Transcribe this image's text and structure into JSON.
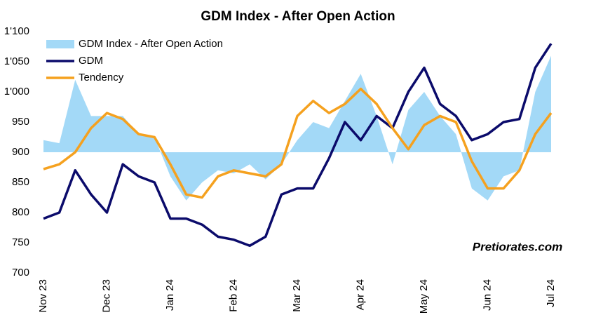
{
  "chart_data": {
    "type": "line",
    "title": "GDM Index - After Open Action",
    "annotation": "Pretiorates.com",
    "categories": [
      "Nov 23",
      null,
      null,
      null,
      "Dec 23",
      null,
      null,
      null,
      "Jan 24",
      null,
      null,
      null,
      "Feb 24",
      null,
      null,
      null,
      "Mar 24",
      null,
      null,
      null,
      "Apr 24",
      null,
      null,
      null,
      "May 24",
      null,
      null,
      null,
      "Jun 24",
      null,
      null,
      null,
      "Jul 24"
    ],
    "area_baseline": 900,
    "series": [
      {
        "name": "GDM Index - After Open Action",
        "kind": "area",
        "color": "#a3d9f7",
        "values": [
          920,
          915,
          1020,
          960,
          960,
          960,
          930,
          925,
          860,
          820,
          850,
          870,
          865,
          880,
          855,
          880,
          920,
          950,
          940,
          985,
          1030,
          960,
          880,
          970,
          1000,
          960,
          930,
          840,
          820,
          860,
          870,
          1000,
          1060
        ]
      },
      {
        "name": "GDM",
        "kind": "line",
        "color": "#0b0b6b",
        "values": [
          790,
          800,
          870,
          830,
          800,
          880,
          860,
          850,
          790,
          790,
          780,
          760,
          755,
          745,
          760,
          830,
          840,
          840,
          890,
          950,
          920,
          960,
          940,
          1000,
          1040,
          980,
          960,
          920,
          930,
          950,
          955,
          1040,
          1080
        ]
      },
      {
        "name": "Tendency",
        "kind": "line",
        "color": "#f5a11f",
        "values": [
          872,
          880,
          900,
          940,
          965,
          955,
          930,
          925,
          880,
          830,
          825,
          860,
          870,
          865,
          860,
          880,
          960,
          985,
          965,
          980,
          1005,
          980,
          940,
          905,
          945,
          960,
          950,
          885,
          840,
          840,
          870,
          930,
          965
        ]
      }
    ],
    "ylim": [
      700,
      1100
    ],
    "yticks": [
      700,
      750,
      800,
      850,
      900,
      950,
      {
        "value": 1000,
        "label": "1'000"
      },
      {
        "value": 1050,
        "label": "1'050"
      },
      {
        "value": 1100,
        "label": "1'100"
      }
    ],
    "legend": "upper left"
  }
}
